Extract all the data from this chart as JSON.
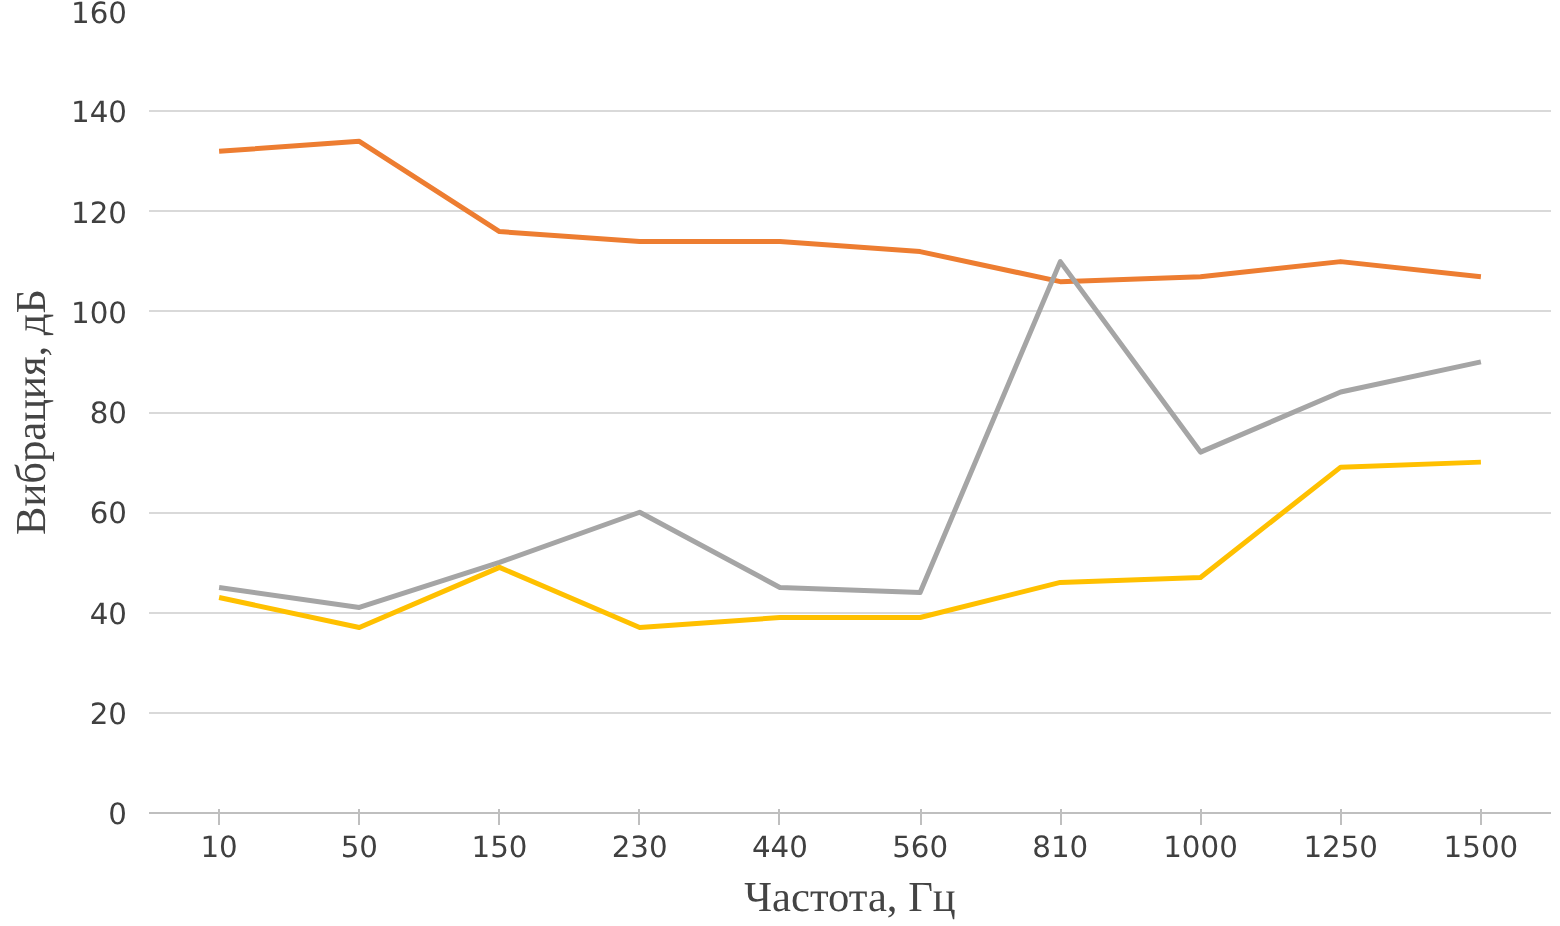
{
  "chart_data": {
    "type": "line",
    "xlabel": "Частота, Гц",
    "ylabel": "Вибрация, дБ",
    "categories": [
      "10",
      "50",
      "150",
      "230",
      "440",
      "560",
      "810",
      "1000",
      "1250",
      "1500"
    ],
    "series": [
      {
        "color": "#ed7d31",
        "values": [
          132,
          134,
          116,
          114,
          114,
          112,
          106,
          107,
          110,
          107
        ]
      },
      {
        "color": "#a5a5a5",
        "values": [
          45,
          41,
          50,
          60,
          45,
          44,
          110,
          72,
          84,
          90
        ]
      },
      {
        "color": "#ffc000",
        "values": [
          43,
          37,
          49,
          37,
          39,
          39,
          46,
          47,
          69,
          70
        ]
      }
    ],
    "ylim": [
      0,
      160
    ],
    "yticks": [
      0,
      20,
      40,
      60,
      80,
      100,
      120,
      140,
      160
    ],
    "grid": "y",
    "marker": "none",
    "line_style": "solid"
  }
}
